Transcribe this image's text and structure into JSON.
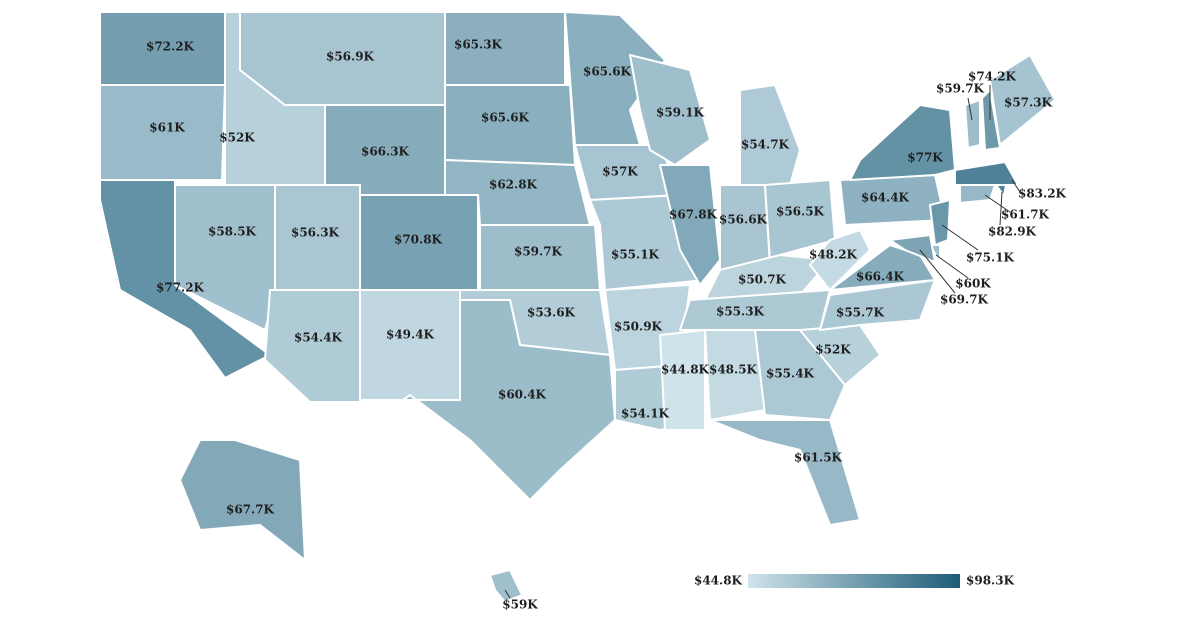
{
  "chart_data": {
    "type": "choropleth",
    "values": [
      72200,
      61000,
      77200,
      52000,
      56900,
      66300,
      58500,
      56300,
      70800,
      54400,
      49400,
      65300,
      65600,
      62800,
      59700,
      53600,
      60400,
      65600,
      57000,
      55100,
      50900,
      54100,
      59100,
      67800,
      54700,
      56600,
      56500,
      50700,
      55300,
      44800,
      48500,
      55400,
      61500,
      52000,
      55700,
      66400,
      48200,
      64400,
      77000,
      57300,
      59700,
      74200,
      83200,
      82900,
      61700,
      75100,
      60000,
      69700,
      67700,
      59000
    ],
    "value_labels": [
      "$72.2K",
      "$61K",
      "$77.2K",
      "$52K",
      "$56.9K",
      "$66.3K",
      "$58.5K",
      "$56.3K",
      "$70.8K",
      "$54.4K",
      "$49.4K",
      "$65.3K",
      "$65.6K",
      "$62.8K",
      "$59.7K",
      "$53.6K",
      "$60.4K",
      "$65.6K",
      "$57K",
      "$55.1K",
      "$50.9K",
      "$54.1K",
      "$59.1K",
      "$67.8K",
      "$54.7K",
      "$56.6K",
      "$56.5K",
      "$50.7K",
      "$55.3K",
      "$44.8K",
      "$48.5K",
      "$55.4K",
      "$61.5K",
      "$52K",
      "$55.7K",
      "$66.4K",
      "$48.2K",
      "$64.4K",
      "$77K",
      "$57.3K",
      "$59.7K",
      "$74.2K",
      "$83.2K",
      "$82.9K",
      "$61.7K",
      "$75.1K",
      "$60K",
      "$69.7K",
      "$67.7K",
      "$59K"
    ],
    "colorscale": {
      "min": {
        "value": 44800,
        "label": "$44.8K"
      },
      "max": {
        "value": 98300,
        "label": "$98.3K"
      },
      "colors": [
        "#cfe3eb",
        "#1d5c77"
      ]
    }
  }
}
